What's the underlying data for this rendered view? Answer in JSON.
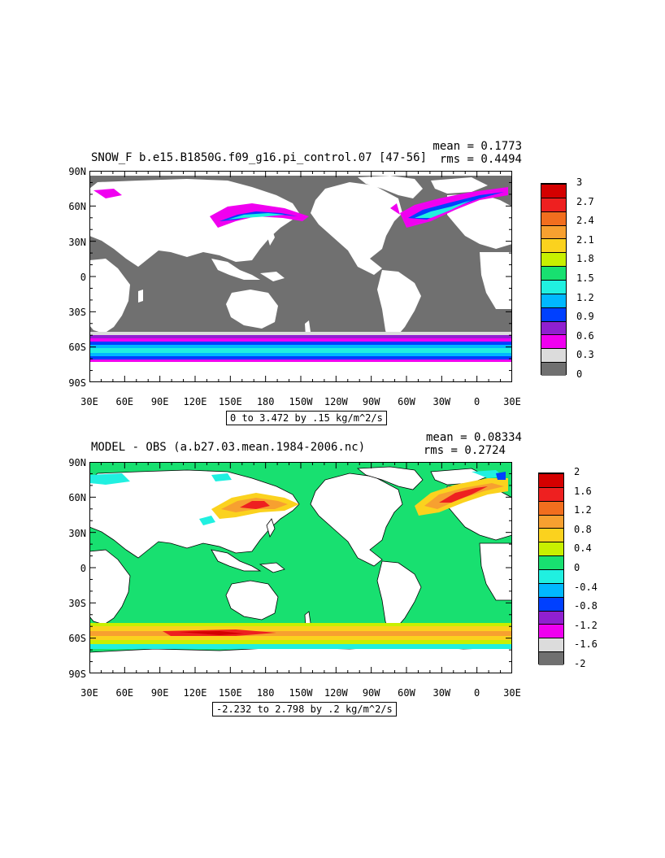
{
  "panel1": {
    "title": "SNOW_F b.e15.B1850G.f09_g16.pi_control.07 [47-56]",
    "mean": "mean = 0.1773",
    "rms": "rms = 0.4494",
    "range": "0 to 3.472 by .15 kg/m^2/s",
    "colorbar": {
      "labels": [
        "3",
        "2.7",
        "2.4",
        "2.1",
        "1.8",
        "1.5",
        "1.2",
        "0.9",
        "0.6",
        "0.3",
        "0"
      ],
      "colors": [
        "#d40000",
        "#ee2020",
        "#f26e1e",
        "#f7a030",
        "#fbd21e",
        "#c8f000",
        "#18e070",
        "#20f0e0",
        "#00b8ff",
        "#0040ff",
        "#9020d0",
        "#f000f0",
        "#dcdcdc",
        "#707070"
      ]
    }
  },
  "panel2": {
    "title": "MODEL - OBS (a.b27.03.mean.1984-2006.nc)",
    "mean": "mean = 0.08334",
    "rms": "rms = 0.2724",
    "range": "-2.232 to 2.798 by .2 kg/m^2/s",
    "colorbar": {
      "labels": [
        "2",
        "1.6",
        "1.2",
        "0.8",
        "0.4",
        "0",
        "-0.4",
        "-0.8",
        "-1.2",
        "-1.6",
        "-2"
      ],
      "colors": [
        "#d40000",
        "#ee2020",
        "#f26e1e",
        "#f7a030",
        "#fbd21e",
        "#c8f000",
        "#18e070",
        "#20f0e0",
        "#00b8ff",
        "#0040ff",
        "#9020d0",
        "#f000f0",
        "#dcdcdc",
        "#707070"
      ]
    }
  },
  "axes": {
    "lat_labels": [
      "90N",
      "60N",
      "30N",
      "0",
      "30S",
      "60S",
      "90S"
    ],
    "lon_labels": [
      "30E",
      "60E",
      "90E",
      "120E",
      "150E",
      "180",
      "150W",
      "120W",
      "90W",
      "60W",
      "30W",
      "0",
      "30E"
    ]
  },
  "colors": {
    "land": "#ffffff",
    "ocean_panel1": "#707070",
    "ocean_panel2": "#18e070"
  }
}
